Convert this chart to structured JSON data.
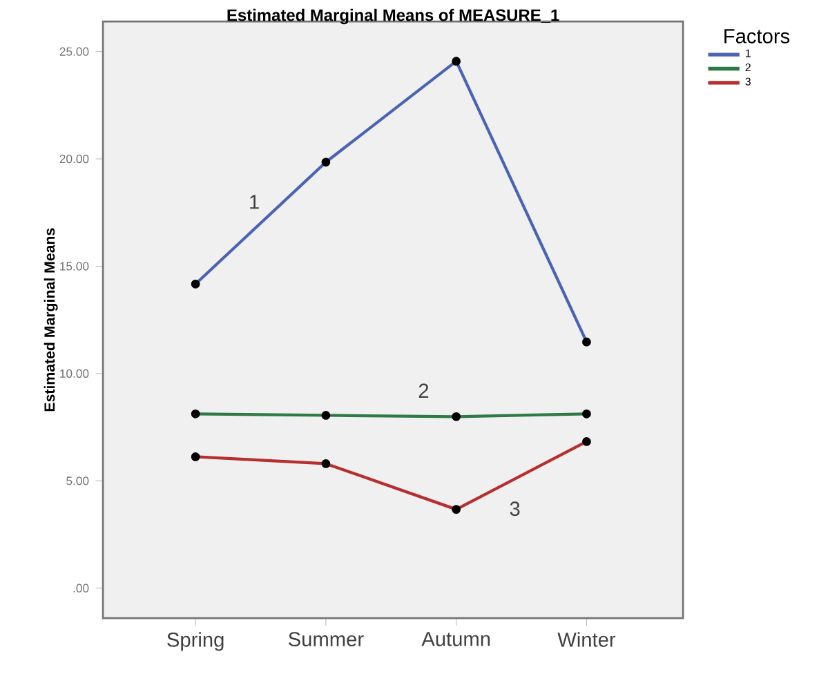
{
  "chart_data": {
    "type": "line",
    "title": "Estimated Marginal Means of MEASURE_1",
    "ylabel": "Estimated Marginal Means",
    "legend_title": "Factors",
    "categories": [
      "Spring",
      "Summer",
      "Autumn",
      "Winter"
    ],
    "series": [
      {
        "name": "1",
        "color": "#4a64b4",
        "values": [
          14.17,
          19.85,
          24.55,
          11.47
        ]
      },
      {
        "name": "2",
        "color": "#2e7a46",
        "values": [
          8.12,
          8.05,
          7.99,
          8.12
        ]
      },
      {
        "name": "3",
        "color": "#b82e2e",
        "values": [
          6.12,
          5.8,
          3.67,
          6.83
        ]
      }
    ],
    "ylim": [
      -1.4,
      26.4
    ],
    "yticks": [
      {
        "value": 0,
        "label": ".00"
      },
      {
        "value": 5,
        "label": "5.00"
      },
      {
        "value": 10,
        "label": "10.00"
      },
      {
        "value": 15,
        "label": "15.00"
      },
      {
        "value": 20,
        "label": "20.00"
      },
      {
        "value": 25,
        "label": "25.00"
      }
    ],
    "annotations": [
      "1",
      "2",
      "3"
    ],
    "legend": "top right",
    "marker": "circle",
    "line_style": "solid",
    "grid": false
  }
}
